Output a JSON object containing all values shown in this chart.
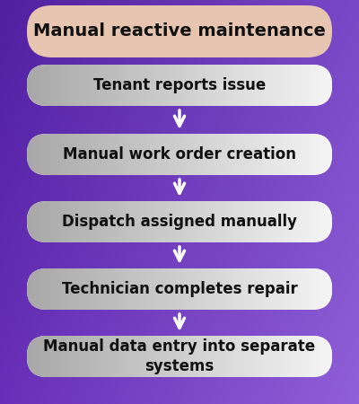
{
  "title": "Manual reactive maintenance",
  "title_bg": "#e8c5b0",
  "steps": [
    "Tenant reports issue",
    "Manual work order creation",
    "Dispatch assigned manually",
    "Technician completes repair",
    "Manual data entry into separate\nsystems"
  ],
  "step_bg_left": "#a8a8a8",
  "step_bg_right": "#f5f5f5",
  "step_text_color": "#111111",
  "arrow_color": "#ffffff",
  "bg_tl": "#5020a0",
  "bg_tr": "#7848c8",
  "bg_bl": "#6830b8",
  "bg_br": "#9060d8",
  "title_fontsize": 14,
  "step_fontsize": 12,
  "figsize": [
    4.0,
    4.5
  ],
  "dpi": 100
}
